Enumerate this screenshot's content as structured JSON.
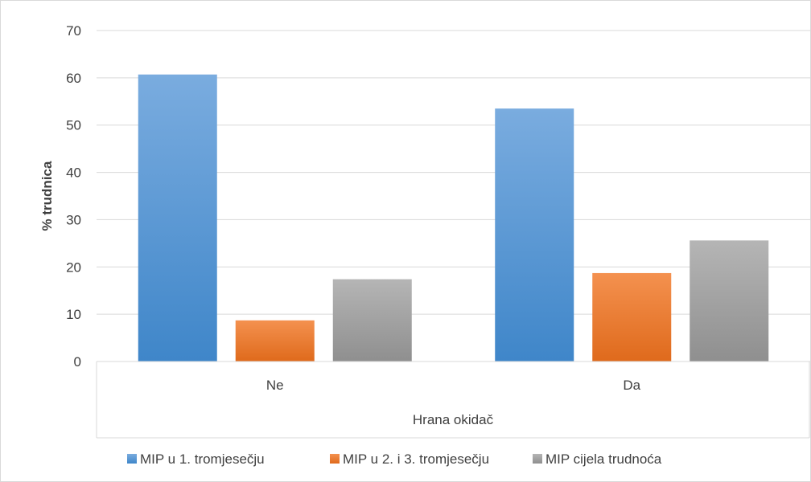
{
  "chart_data": {
    "type": "bar",
    "title": "",
    "xlabel": "Hrana okidač",
    "ylabel": "% trudnica",
    "categories": [
      "Ne",
      "Da"
    ],
    "series": [
      {
        "name": "MIP u 1. tromjesečju",
        "values": [
          60.7,
          53.5
        ],
        "color": "#5b9bd5"
      },
      {
        "name": "MIP u 2. i 3. tromjesečju",
        "values": [
          8.7,
          18.7
        ],
        "color": "#ed7d31"
      },
      {
        "name": "MIP cijela trudnoća",
        "values": [
          17.4,
          25.6
        ],
        "color": "#a5a5a5"
      }
    ],
    "ylim": [
      0,
      70
    ],
    "yticks": [
      0,
      10,
      20,
      30,
      40,
      50,
      60,
      70
    ],
    "grid": true,
    "legend": "bottom"
  }
}
